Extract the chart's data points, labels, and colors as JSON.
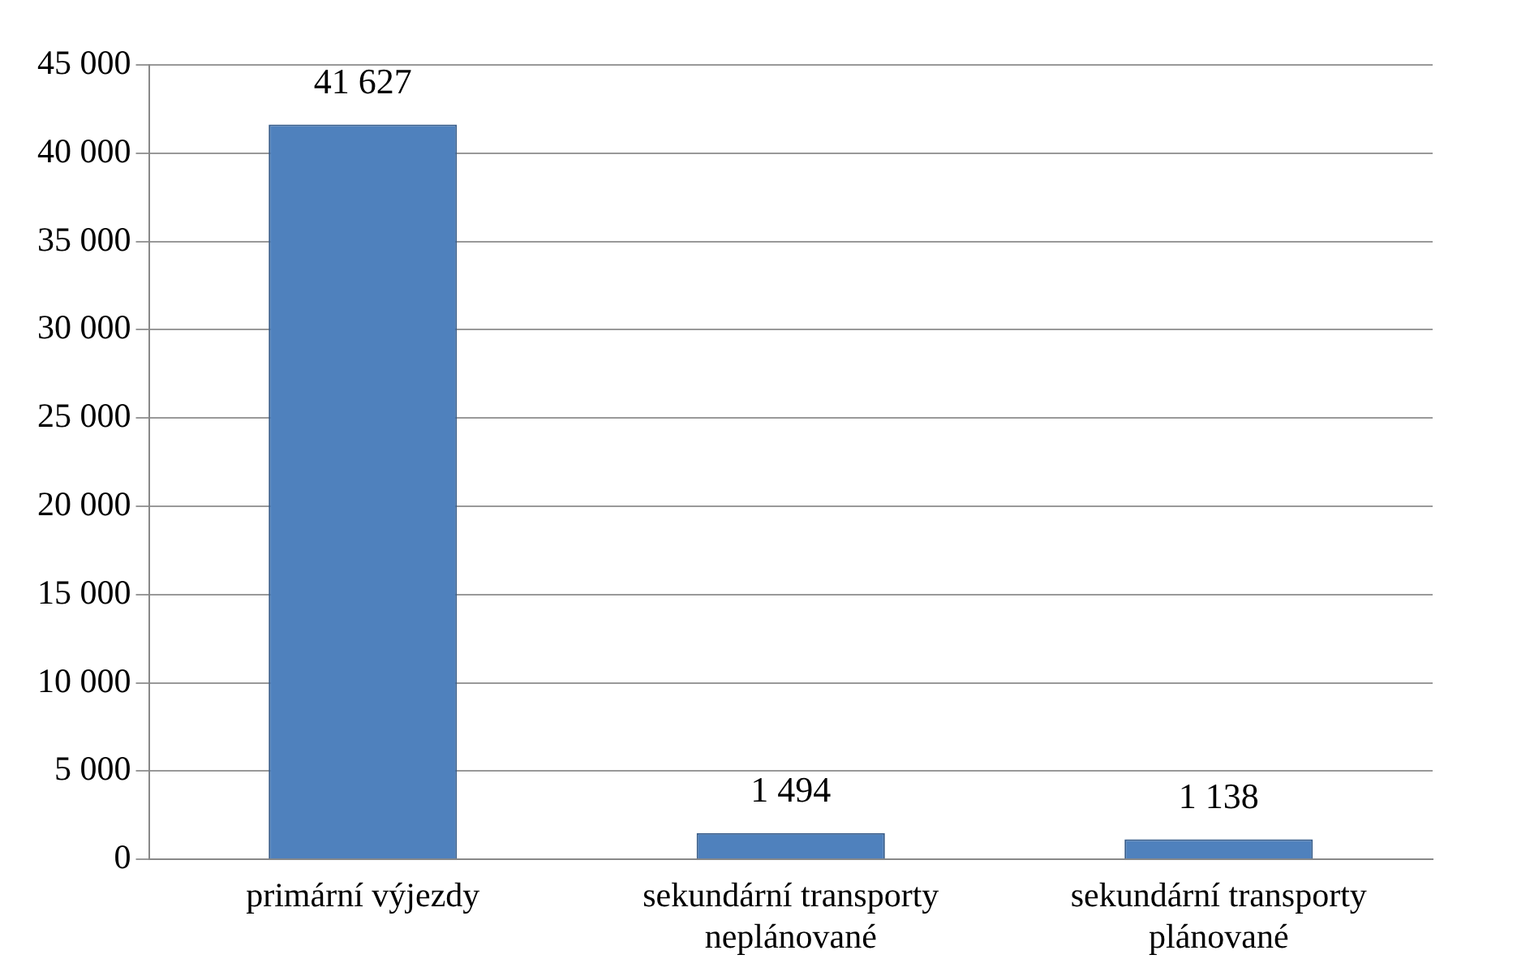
{
  "chart_data": {
    "type": "bar",
    "categories": [
      "primární výjezdy",
      "sekundární transporty neplánované",
      "sekundární transporty plánované"
    ],
    "values": [
      41627,
      1494,
      1138
    ],
    "color": "#4f81bd",
    "value_labels": [
      "41 627",
      "1 494",
      "1 138"
    ],
    "ylim": [
      0,
      45000
    ],
    "yticks": [
      {
        "value": 0,
        "label": "0"
      },
      {
        "value": 5000,
        "label": "5 000"
      },
      {
        "value": 10000,
        "label": "10 000"
      },
      {
        "value": 15000,
        "label": "15 000"
      },
      {
        "value": 20000,
        "label": "20 000"
      },
      {
        "value": 25000,
        "label": "25 000"
      },
      {
        "value": 30000,
        "label": "30 000"
      },
      {
        "value": 35000,
        "label": "35 000"
      },
      {
        "value": 40000,
        "label": "40 000"
      },
      {
        "value": 45000,
        "label": "45 000"
      }
    ],
    "grid": "y",
    "legend": false
  }
}
